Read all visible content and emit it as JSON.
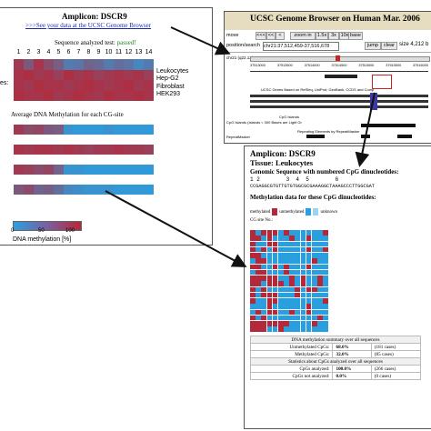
{
  "left_panel": {
    "title": "Amplicon: DSCR9",
    "link": ">>>See your data at the UCSC Genome Browser",
    "status_prefix": "Sequence analyzed test:",
    "status_value": "passed!",
    "status_color": "#1a8a1a",
    "cg_numbers": [
      "1",
      "2",
      "3",
      "4",
      "5",
      "6",
      "7",
      "8",
      "9",
      "10",
      "11",
      "12",
      "13",
      "14"
    ],
    "row_label_cut": "es:",
    "sample_labels": [
      "Leukocytes",
      "Hep-G2",
      "Fibroblast",
      "HEK293"
    ],
    "average_heading": "Average DNA Methylation for each CG-site",
    "legend_ticks": [
      "0",
      "50",
      "100"
    ],
    "legend_label": "DNA methylation [%]"
  },
  "ucsc_panel": {
    "title": "UCSC Genome Browser on Human Mar. 2006",
    "nav_buttons": [
      "move",
      "<<<",
      "<<",
      "<",
      "zoom in",
      "1.5x",
      "3x",
      "10x",
      "base"
    ],
    "position_label": "position/search",
    "position_value": "chr21:37,512,459-37,516,678",
    "jump_label": "jump",
    "clear_label": "clear",
    "size_label": "size 4,212 b",
    "chrom_label": "chr21 (q22.13)",
    "track_labels": [
      "UCSC Genes Based on RefSeq, UniProt, GenBank, CCDS and Comp",
      "CpG Islands",
      "CpG Islands (Islands < 300 Bases are Light Gr",
      "Repeating Elements by RepeatMasker",
      "RepeatMasker"
    ],
    "ruler_ticks": [
      "37513000",
      "37513500",
      "37514000",
      "37514500",
      "37515000",
      "37515500",
      "37516000"
    ],
    "highlight_color": "#cc2222"
  },
  "detail_panel": {
    "title": "Amplicon: DSCR9",
    "tissue": "Tissue: Leukocytes",
    "genomic_heading": "Genomic Sequence with numbered CpG dinucleotides:",
    "seq_numbers": "1 2        3  4  5        6",
    "sequence": "CCGAGGCGTGTTGTGTGGCGCGAAAGGCTAAAGCCCTTGGCGAT",
    "methylation_heading": "Methylation data for these CpG dinucleotides:",
    "legend": [
      "methylated",
      "unmethylated",
      "unknown"
    ],
    "cg_site_label": "CG site No.:",
    "summary_title": "DNA methylation summary over all sequences",
    "summary_rows": [
      {
        "label": "Unmethylated CpGs:",
        "value": "68.0%",
        "cases": "(181 cases)"
      },
      {
        "label": "Methylated CpGs:",
        "value": "32.0%",
        "cases": "(85 cases)"
      }
    ],
    "stats_title": "Statistics about CpGs analyzed over all sequences",
    "stats_rows": [
      {
        "label": "CpGs analyzed:",
        "value": "100.0%",
        "cases": "(266 cases)"
      },
      {
        "label": "CpGs not analyzed:",
        "value": "0.0%",
        "cases": "(0 cases)"
      }
    ]
  },
  "colors": {
    "methylated": "#b5283a",
    "unmethylated": "#2a9fe0",
    "unknown": "#9bd3f0",
    "arrow": "#111111"
  },
  "heatmap": {
    "samples": [
      [
        0.85,
        0.6,
        0.9,
        0.7,
        0.55,
        0.3,
        0.35,
        0.5,
        0.45,
        0.3,
        0.4,
        0.35,
        0.2,
        0.3
      ],
      [
        0.9,
        0.95,
        0.85,
        0.9,
        0.8,
        0.95,
        0.85,
        0.9,
        0.8,
        0.85,
        0.9,
        0.85,
        0.9,
        0.8
      ],
      [
        0.9,
        0.85,
        0.95,
        0.9,
        0.9,
        0.85,
        0.9,
        0.95,
        0.9,
        0.85,
        0.9,
        0.95,
        0.85,
        0.9
      ],
      [
        0.95,
        0.9,
        0.9,
        0.95,
        0.85,
        0.9,
        0.95,
        0.9,
        0.85,
        0.95,
        0.9,
        0.9,
        0.95,
        0.9
      ]
    ],
    "averages": [
      [
        0.85,
        0.7,
        0.75,
        0.6,
        0.55,
        0.1,
        0.05,
        0.05,
        0.05,
        0.1,
        0.05,
        0.05,
        0.05,
        0.05
      ],
      [
        0.9,
        0.85,
        0.9,
        0.9,
        0.85,
        0.9,
        0.85,
        0.8,
        0.85,
        0.85,
        0.9,
        0.85,
        0.85,
        0.8
      ],
      [
        0.85,
        0.8,
        0.7,
        0.75,
        0.5,
        0.1,
        0.1,
        0.05,
        0.05,
        0.05,
        0.05,
        0.05,
        0.05,
        0.05
      ],
      [
        0.6,
        0.7,
        0.5,
        0.55,
        0.4,
        0.2,
        0.15,
        0.1,
        0.1,
        0.1,
        0.05,
        0.05,
        0.05,
        0.05
      ]
    ]
  }
}
